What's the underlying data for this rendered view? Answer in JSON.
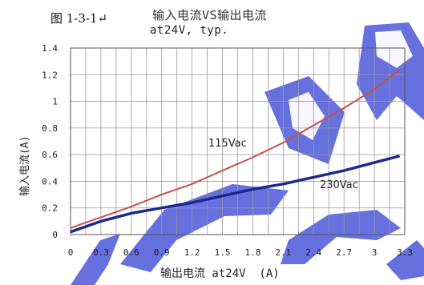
{
  "figure_label": "图 1-3-1↵",
  "chart_data": {
    "type": "line",
    "title": "输入电流VS输出电流",
    "subtitle": "at24V, typ.",
    "xlabel": "输出电流 at24V  (A)",
    "ylabel": "输入电流(A)",
    "xlim": [
      0,
      3.3
    ],
    "ylim": [
      0,
      1.4
    ],
    "xticks": [
      "0",
      "0.3",
      "0.6",
      "0.9",
      "1.2",
      "1.5",
      "1.8",
      "2.1",
      "2.4",
      "2.7",
      "3",
      "3.3"
    ],
    "xtick_values": [
      0,
      0.3,
      0.6,
      0.9,
      1.2,
      1.5,
      1.8,
      2.1,
      2.4,
      2.7,
      3.0,
      3.3
    ],
    "yticks": [
      "0",
      "0.2",
      "0.4",
      "0.6",
      "0.8",
      "1",
      "1.2",
      "1.4"
    ],
    "ytick_values": [
      0,
      0.2,
      0.4,
      0.6,
      0.8,
      1.0,
      1.2,
      1.4
    ],
    "grid": true,
    "series": [
      {
        "name": "115Vac",
        "color": "#c8504b",
        "x": [
          0,
          0.3,
          0.6,
          0.9,
          1.2,
          1.5,
          1.8,
          2.1,
          2.4,
          2.7,
          3.0,
          3.25
        ],
        "y": [
          0.05,
          0.13,
          0.21,
          0.3,
          0.38,
          0.48,
          0.58,
          0.69,
          0.82,
          0.95,
          1.09,
          1.24
        ]
      },
      {
        "name": "230Vac",
        "color": "#1c2a8c",
        "x": [
          0,
          0.3,
          0.6,
          0.9,
          1.2,
          1.5,
          1.8,
          2.1,
          2.4,
          2.7,
          3.0,
          3.25
        ],
        "y": [
          0.02,
          0.1,
          0.16,
          0.2,
          0.24,
          0.29,
          0.34,
          0.38,
          0.43,
          0.48,
          0.54,
          0.59
        ]
      }
    ]
  }
}
